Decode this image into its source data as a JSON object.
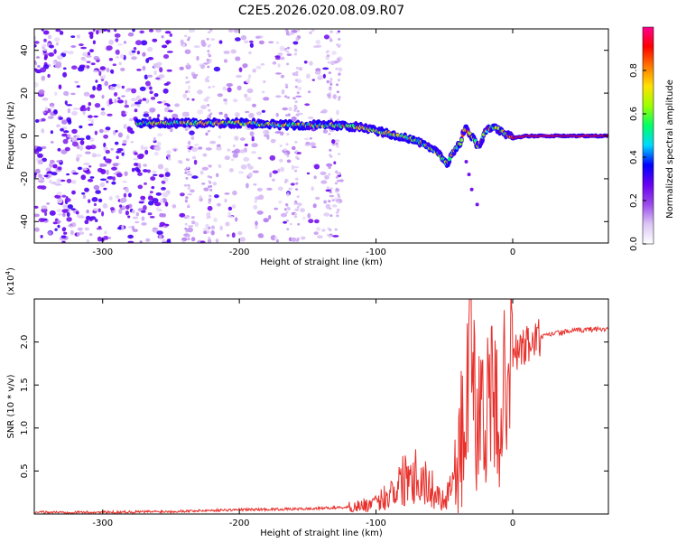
{
  "figure": {
    "title": "C2E5.2026.020.08.09.R07"
  },
  "chart_data": [
    {
      "type": "heatmap",
      "title": "C2E5.2026.020.08.09.R07",
      "xlabel": "Height of straight line (km)",
      "ylabel": "Frequency (Hz)",
      "xlim": [
        -350,
        70
      ],
      "ylim": [
        -50,
        50
      ],
      "x_ticks": [
        -300,
        -200,
        -100,
        0
      ],
      "y_ticks": [
        -40,
        -20,
        0,
        20,
        40
      ],
      "x_tick_labels": [
        "-300",
        "-200",
        "-100",
        "0"
      ],
      "y_tick_labels": [
        "-40",
        "-20",
        "0",
        "20",
        "40"
      ],
      "grid": false,
      "colorbar": {
        "label": "Normalized spectral amplitude",
        "range": [
          0,
          1
        ],
        "ticks": [
          "0.0",
          "0.2",
          "0.4",
          "0.6",
          "0.8"
        ],
        "colormap": [
          "#ffffff",
          "#dcc6f6",
          "#9b4bea",
          "#6a00f0",
          "#0000ff",
          "#00d8ff",
          "#00ff66",
          "#9cff00",
          "#ffe100",
          "#ff7a00",
          "#ff0000",
          "#ff0090"
        ]
      },
      "ridge": {
        "description_points_x_km": [
          -270,
          -240,
          -200,
          -160,
          -130,
          -110,
          -90,
          -70,
          -55,
          -48,
          -42,
          -38,
          -35,
          -30,
          -25,
          -20,
          -15,
          -10,
          -5,
          0,
          10,
          70
        ],
        "frequency_hz": [
          6,
          6,
          6,
          5,
          5,
          4,
          1,
          -2,
          -8,
          -13,
          -6,
          -3,
          4,
          0,
          -5,
          2,
          4,
          3,
          1,
          -1,
          0,
          0
        ]
      }
    },
    {
      "type": "line",
      "xlabel": "Height of straight line (km)",
      "ylabel": "SNR (10 * v/v)",
      "y_multiplier": "(x10",
      "y_multiplier_exp": "4",
      "y_multiplier_close": ")",
      "xlim": [
        -350,
        70
      ],
      "ylim": [
        0,
        2.5
      ],
      "x_ticks": [
        -300,
        -200,
        -100,
        0
      ],
      "y_ticks": [
        0.5,
        1.0,
        1.5,
        2.0
      ],
      "x_tick_labels": [
        "-300",
        "-200",
        "-100",
        "0"
      ],
      "y_tick_labels": [
        "0.5",
        "1.0",
        "1.5",
        "2.0"
      ],
      "grid": false,
      "line_color": "#e8312c",
      "series": [
        {
          "x": [
            -350,
            -300,
            -250,
            -200,
            -150,
            -120,
            -100,
            -90,
            -80,
            -75,
            -70,
            -60,
            -50,
            -40,
            -35,
            -30,
            -28,
            -25,
            -22,
            -20,
            -15,
            -10,
            -5,
            0,
            10,
            20,
            30,
            40,
            50,
            60,
            70
          ],
          "values": [
            0.02,
            0.02,
            0.03,
            0.05,
            0.06,
            0.08,
            0.12,
            0.25,
            0.4,
            0.55,
            0.45,
            0.3,
            0.15,
            0.6,
            1.0,
            2.3,
            1.4,
            0.9,
            1.5,
            1.2,
            1.3,
            1.1,
            1.6,
            1.85,
            1.95,
            2.05,
            2.1,
            2.12,
            2.14,
            2.15,
            2.15
          ]
        }
      ]
    }
  ]
}
